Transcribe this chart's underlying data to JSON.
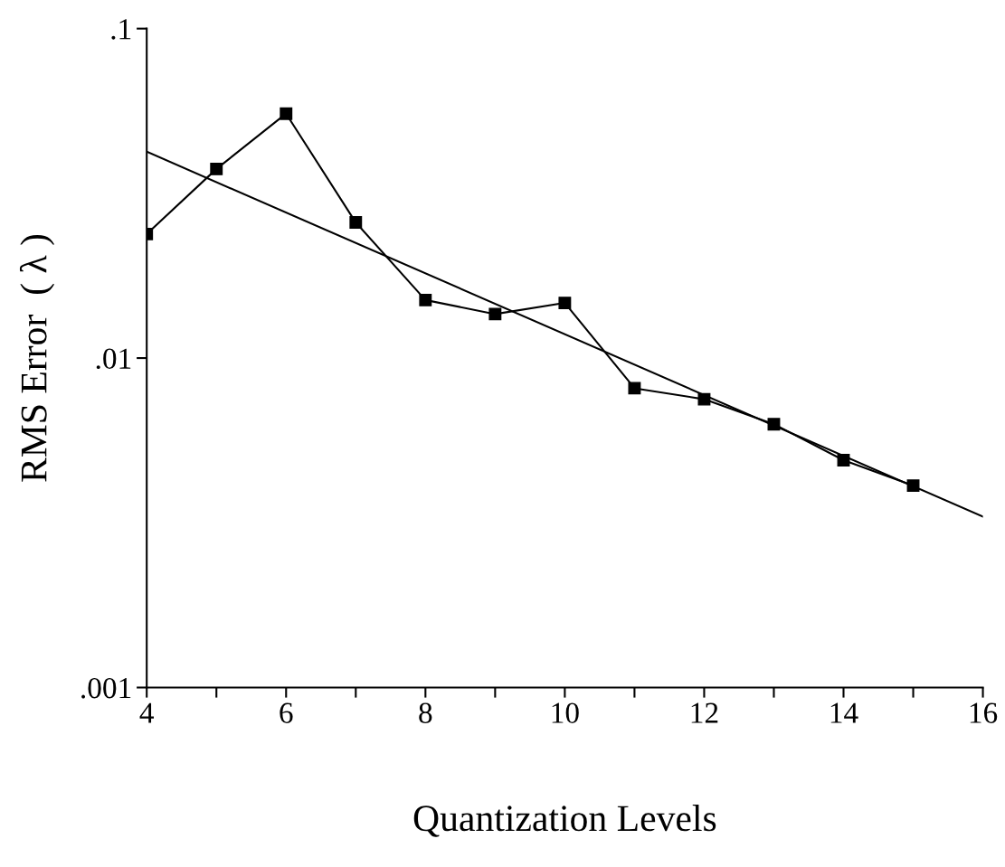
{
  "chart_data": {
    "type": "line",
    "xlabel": "Quantization Levels",
    "ylabel": "RMS Error  ( λ )",
    "log": "y",
    "xlim": [
      4,
      16
    ],
    "xticks": [
      4,
      {
        "value": 5,
        "label": null
      },
      6,
      {
        "value": 7,
        "label": null
      },
      8,
      {
        "value": 9,
        "label": null
      },
      10,
      {
        "value": 11,
        "label": null
      },
      12,
      {
        "value": 13,
        "label": null
      },
      14,
      {
        "value": 15,
        "label": null
      },
      16
    ],
    "ylim": [
      0.001,
      0.1
    ],
    "yticks": [
      {
        "value": 0.001,
        "label": ".001"
      },
      {
        "value": 0.01,
        "label": ".01"
      },
      {
        "value": 0.1,
        "label": ".1"
      }
    ],
    "grid": false,
    "legend": false,
    "series": [
      {
        "color": "#000000",
        "marker": "square",
        "line_style": "solid",
        "x": [
          4,
          5,
          6,
          7,
          8,
          9,
          10,
          11,
          12,
          13,
          14,
          15
        ],
        "values": [
          0.0238,
          0.0375,
          0.0552,
          0.0258,
          0.015,
          0.0136,
          0.0147,
          0.0081,
          0.0075,
          0.0063,
          0.0049,
          0.0041
        ]
      },
      {
        "color": "#000000",
        "marker": "none",
        "line_style": "solid",
        "x": [
          4,
          16
        ],
        "values": [
          0.0423,
          0.0033
        ]
      }
    ]
  }
}
